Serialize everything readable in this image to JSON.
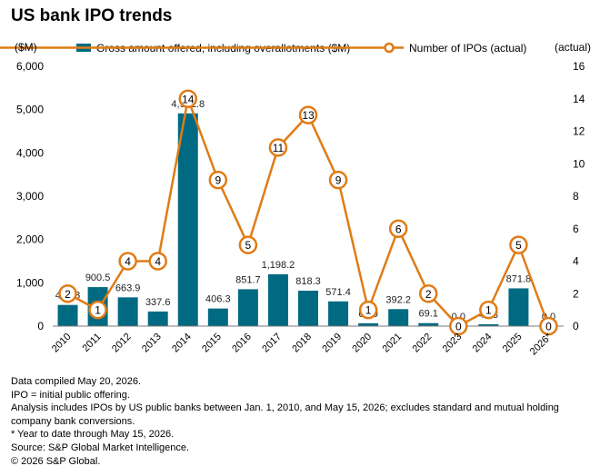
{
  "title": "US bank IPO trends",
  "chart_data": {
    "type": "bar+line",
    "categories": [
      "2010",
      "2011",
      "2012",
      "2013",
      "2014",
      "2015",
      "2016",
      "2017",
      "2018",
      "2019",
      "2020",
      "2021",
      "2022",
      "2023",
      "2024",
      "2025",
      "2026*"
    ],
    "series": [
      {
        "name": "Gross amount offered, including overallotments ($M)",
        "type": "bar",
        "axis": "left",
        "color": "#006a82",
        "values": [
          489.3,
          900.5,
          663.9,
          337.6,
          4912.8,
          406.3,
          851.7,
          1198.2,
          818.3,
          571.4,
          66.0,
          392.2,
          69.1,
          0.0,
          43.8,
          871.8,
          0.0
        ],
        "labels": [
          "489.3",
          "900.5",
          "663.9",
          "337.6",
          "4,912.8",
          "406.3",
          "851.7",
          "1,198.2",
          "818.3",
          "571.4",
          "66.0",
          "392.2",
          "69.1",
          "0.0",
          "43.8",
          "871.8",
          "0.0"
        ]
      },
      {
        "name": "Number of IPOs (actual)",
        "type": "line",
        "axis": "right",
        "color": "#e07b15",
        "values": [
          2,
          1,
          4,
          4,
          14,
          9,
          5,
          11,
          13,
          9,
          1,
          6,
          2,
          0,
          1,
          5,
          0
        ]
      }
    ],
    "y_left": {
      "label": "($M)",
      "range": [
        0,
        6000
      ],
      "ticks": [
        0,
        1000,
        2000,
        3000,
        4000,
        5000,
        6000
      ],
      "tick_labels": [
        "0",
        "1,000",
        "2,000",
        "3,000",
        "4,000",
        "5,000",
        "6,000"
      ]
    },
    "y_right": {
      "label": "(actual)",
      "range": [
        0,
        16
      ],
      "ticks": [
        0,
        2,
        4,
        6,
        8,
        10,
        12,
        14,
        16
      ]
    },
    "grid": false,
    "legend": "top"
  },
  "footnotes": [
    "Data compiled May 20, 2026.",
    "IPO = initial public offering.",
    "Analysis includes IPOs by US public banks between Jan. 1, 2010, and May 15, 2026; excludes standard and mutual holding company bank conversions.",
    "* Year to date through May 15, 2026.",
    "Source: S&P Global Market Intelligence.",
    "© 2026 S&P Global."
  ]
}
